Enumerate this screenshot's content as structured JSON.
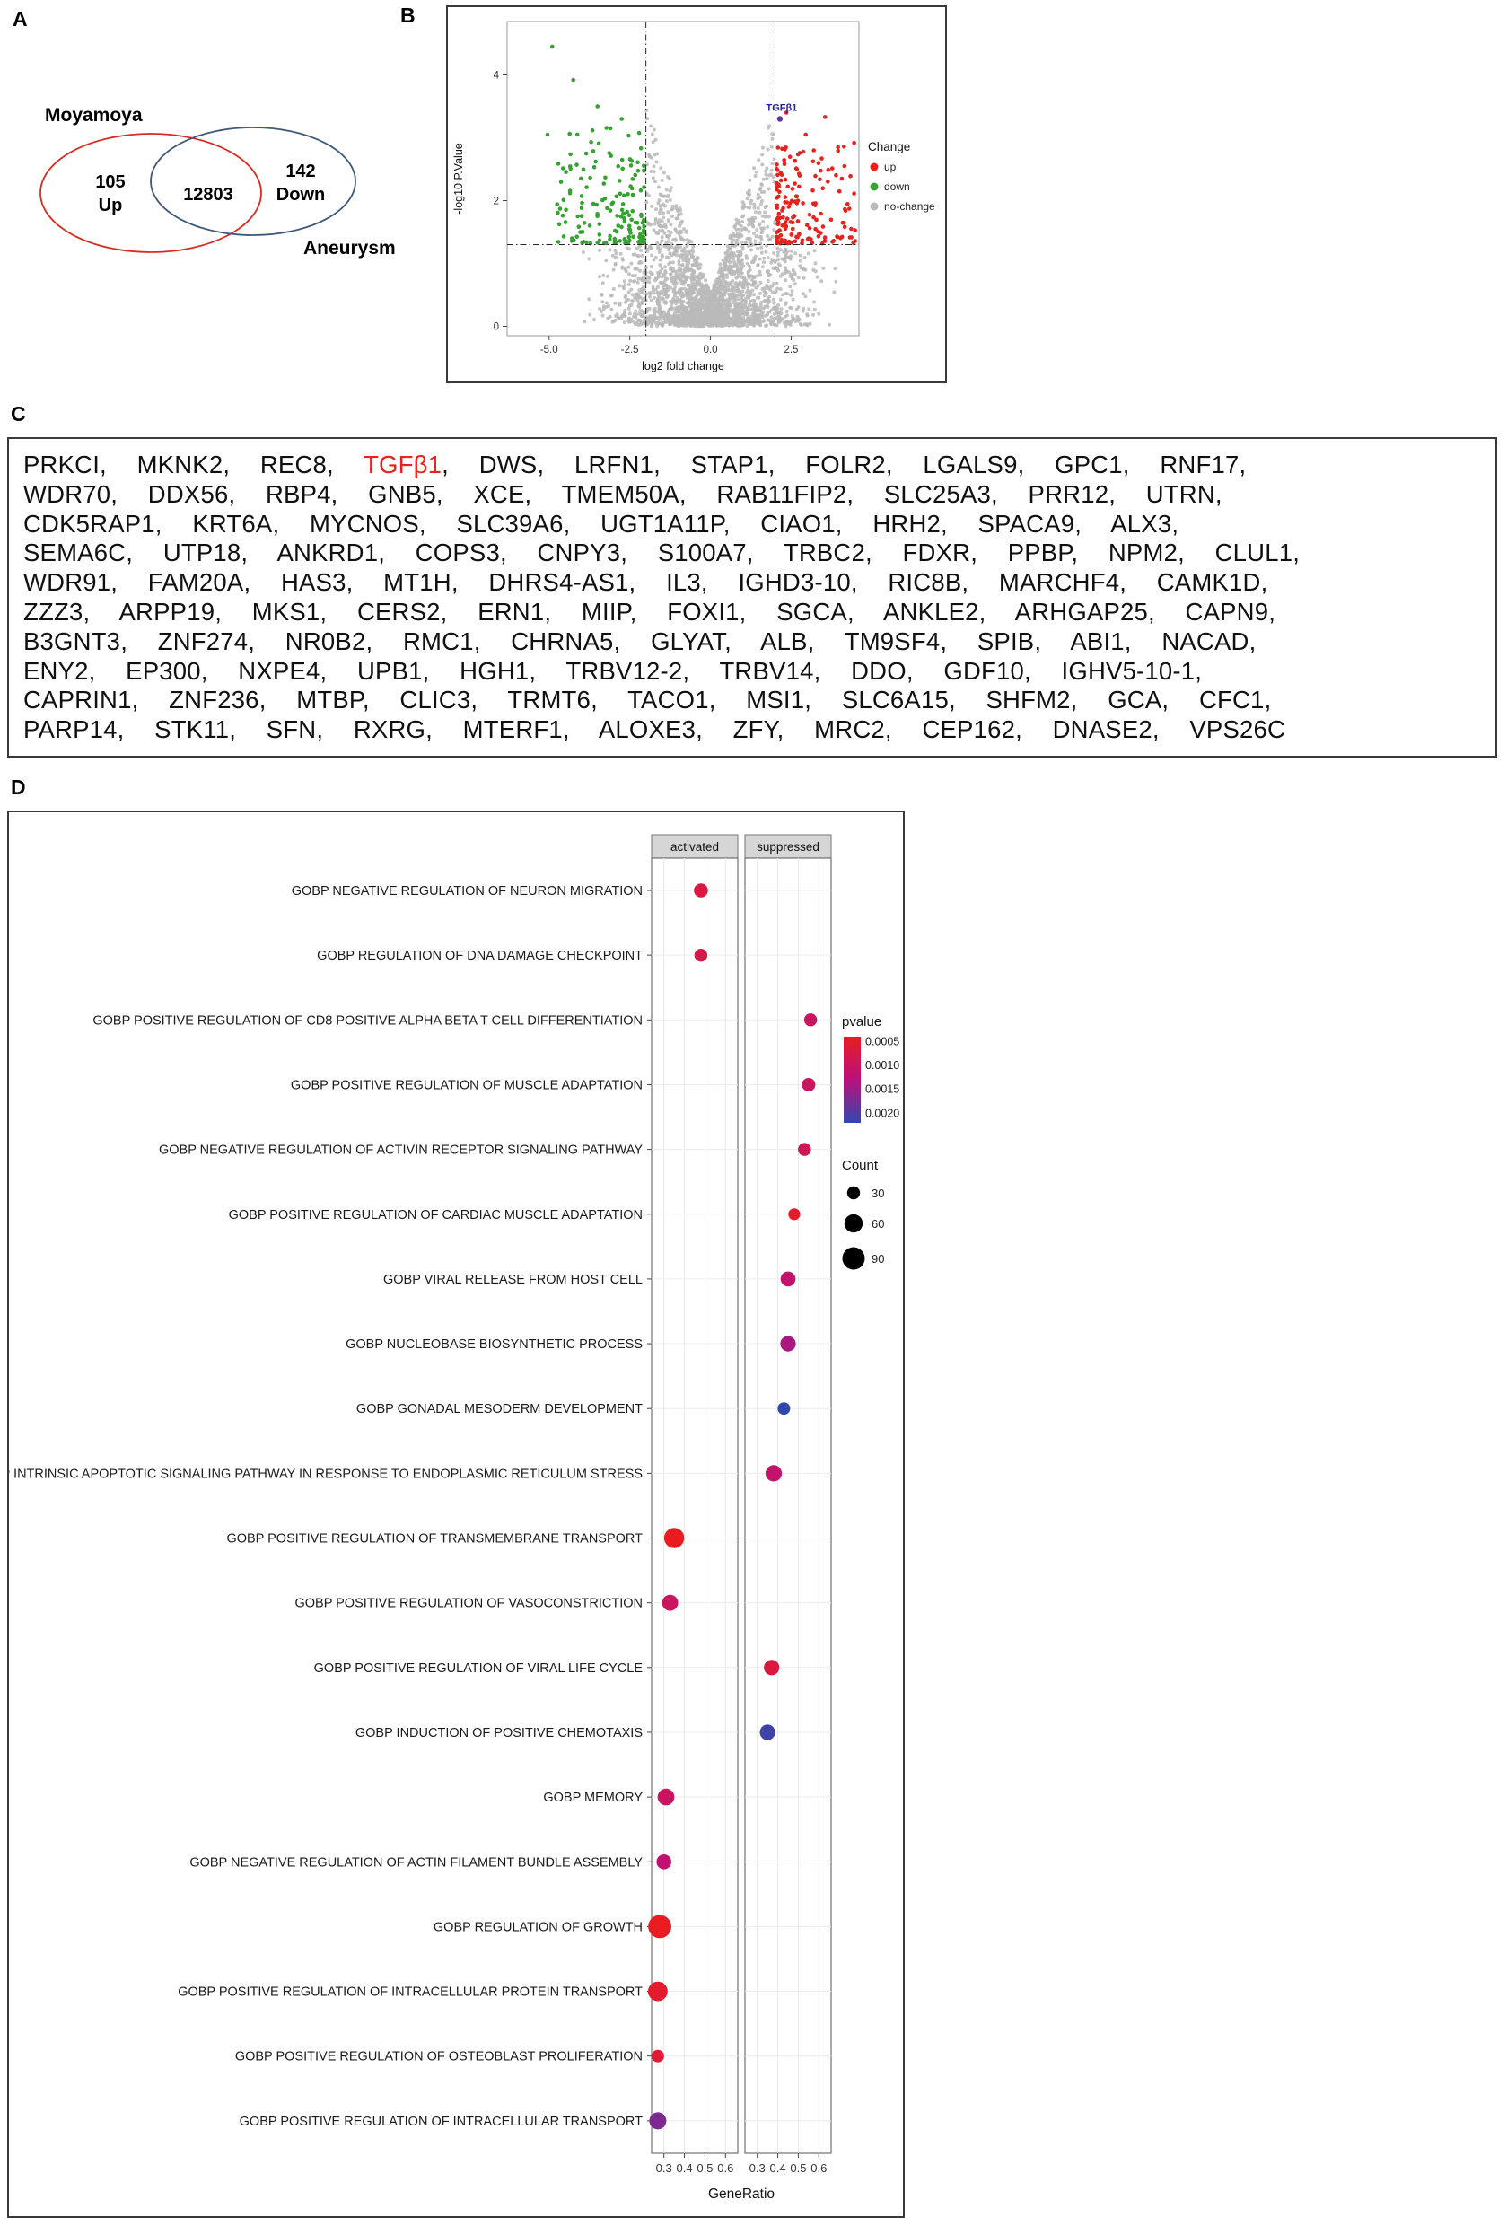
{
  "figure": {
    "panels": {
      "a": "A",
      "b": "B",
      "c": "C",
      "d": "D"
    }
  },
  "venn": {
    "left_title": "Moyamoya",
    "right_title": "Aneurysm",
    "left_value": "105",
    "left_sub": "Up",
    "intersection_value": "12803",
    "right_value": "142",
    "right_sub": "Down",
    "left_color": "#d92b21",
    "right_color": "#3f5a78"
  },
  "gene_list": {
    "highlight": "TGFβ1",
    "highlight_color": "#e8231d",
    "lines": [
      [
        "PRKCI",
        "MKNK2",
        "REC8",
        "TGFβ1",
        "DWS",
        "LRFN1",
        "STAP1",
        "FOLR2",
        "LGALS9",
        "GPC1",
        "RNF17"
      ],
      [
        "WDR70",
        "DDX56",
        "RBP4",
        "GNB5",
        "XCE",
        "TMEM50A",
        "RAB11FIP2",
        "SLC25A3",
        "PRR12",
        "UTRN"
      ],
      [
        "CDK5RAP1",
        "KRT6A",
        "MYCNOS",
        "SLC39A6",
        "UGT1A11P",
        "CIAO1",
        "HRH2",
        "SPACA9",
        "ALX3"
      ],
      [
        "SEMA6C",
        "UTP18",
        "ANKRD1",
        "COPS3",
        "CNPY3",
        "S100A7",
        "TRBC2",
        "FDXR",
        "PPBP",
        "NPM2",
        "CLUL1"
      ],
      [
        "WDR91",
        "FAM20A",
        "HAS3",
        "MT1H",
        "DHRS4-AS1",
        "IL3",
        "IGHD3-10",
        "RIC8B",
        "MARCHF4",
        "CAMK1D"
      ],
      [
        "ZZZ3",
        "ARPP19",
        "MKS1",
        "CERS2",
        "ERN1",
        "MIIP",
        "FOXI1",
        "SGCA",
        "ANKLE2",
        "ARHGAP25",
        "CAPN9"
      ],
      [
        "B3GNT3",
        "ZNF274",
        "NR0B2",
        "RMC1",
        "CHRNA5",
        "GLYAT",
        "ALB",
        "TM9SF4",
        "SPIB",
        "ABI1",
        "NACAD"
      ],
      [
        "ENY2",
        "EP300",
        "NXPE4",
        "UPB1",
        "HGH1",
        "TRBV12-2",
        "TRBV14",
        "DDO",
        "GDF10",
        "IGHV5-10-1"
      ],
      [
        "CAPRIN1",
        "ZNF236",
        "MTBP",
        "CLIC3",
        "TRMT6",
        "TACO1",
        "MSI1",
        "SLC6A15",
        "SHFM2",
        "GCA",
        "CFC1"
      ],
      [
        "PARP14",
        "STK11",
        "SFN",
        "RXRG",
        "MTERF1",
        "ALOXE3",
        "ZFY",
        "MRC2",
        "CEP162",
        "DNASE2",
        "VPS26C"
      ]
    ]
  },
  "chart_data": [
    {
      "id": "volcano",
      "type": "scatter",
      "xlabel": "log2 fold change",
      "ylabel": "-log10 P.Value",
      "xlim": [
        -6.3,
        4.6
      ],
      "ylim": [
        -0.15,
        4.85
      ],
      "x_ticks": [
        "-5.0",
        "-2.5",
        "0.0",
        "2.5"
      ],
      "x_tick_values": [
        -5.0,
        -2.5,
        0.0,
        2.5
      ],
      "y_ticks": [
        "0",
        "2",
        "4"
      ],
      "y_tick_values": [
        0,
        2,
        4
      ],
      "threshold_x": [
        -2,
        2
      ],
      "threshold_y": 1.3,
      "legend": {
        "title": "Change",
        "items": [
          {
            "label": "up",
            "color": "#e8231d"
          },
          {
            "label": "down",
            "color": "#35a330"
          },
          {
            "label": "no-change",
            "color": "#bababa"
          }
        ]
      },
      "annotated_point": {
        "label": "TGFβ1",
        "x": 2.15,
        "y": 3.3,
        "text_color": "#24248c",
        "point_color": "#5a3a96"
      },
      "generation": {
        "seed": 1337,
        "n_nochange": 2600,
        "n_down": 155,
        "n_up": 165
      },
      "down_outliers": [
        [
          -4.9,
          4.45
        ],
        [
          -4.25,
          3.92
        ],
        [
          -3.5,
          3.5
        ],
        [
          -2.75,
          3.3
        ],
        [
          -5.05,
          3.05
        ],
        [
          -3.1,
          3.15
        ]
      ],
      "up_outliers": [
        [
          4.45,
          2.92
        ],
        [
          3.55,
          3.33
        ],
        [
          2.95,
          3.05
        ],
        [
          4.15,
          2.55
        ],
        [
          2.35,
          3.4
        ],
        [
          3.2,
          2.8
        ]
      ]
    },
    {
      "id": "gsea_dotplot",
      "type": "dotplot",
      "facets": [
        "activated",
        "suppressed"
      ],
      "xlabel": "GeneRatio",
      "xlim": [
        0.24,
        0.66
      ],
      "x_ticks": [
        "0.3",
        "0.4",
        "0.5",
        "0.6"
      ],
      "x_tick_values": [
        0.3,
        0.4,
        0.5,
        0.6
      ],
      "color_legend": {
        "title": "pvalue",
        "domain": [
          0.0004,
          0.0022
        ],
        "ticks": [
          "0.0005",
          "0.0010",
          "0.0015",
          "0.0020"
        ],
        "tick_values": [
          0.0005,
          0.001,
          0.0015,
          0.002
        ]
      },
      "size_legend": {
        "title": "Count",
        "ticks": [
          30,
          60,
          90
        ]
      },
      "rows": [
        {
          "term": "GOBP NEGATIVE REGULATION OF NEURON MIGRATION",
          "facet": "activated",
          "gene_ratio": 0.48,
          "pvalue": 0.0007,
          "count": 35
        },
        {
          "term": "GOBP REGULATION OF DNA DAMAGE CHECKPOINT",
          "facet": "activated",
          "gene_ratio": 0.48,
          "pvalue": 0.0008,
          "count": 30
        },
        {
          "term": "GOBP POSITIVE REGULATION OF CD8 POSITIVE ALPHA BETA T CELL DIFFERENTIATION",
          "facet": "suppressed",
          "gene_ratio": 0.56,
          "pvalue": 0.001,
          "count": 30
        },
        {
          "term": "GOBP POSITIVE REGULATION OF MUSCLE ADAPTATION",
          "facet": "suppressed",
          "gene_ratio": 0.55,
          "pvalue": 0.001,
          "count": 32
        },
        {
          "term": "GOBP NEGATIVE REGULATION OF ACTIVIN RECEPTOR SIGNALING PATHWAY",
          "facet": "suppressed",
          "gene_ratio": 0.53,
          "pvalue": 0.0009,
          "count": 30
        },
        {
          "term": "GOBP POSITIVE REGULATION OF CARDIAC MUSCLE ADAPTATION",
          "facet": "suppressed",
          "gene_ratio": 0.48,
          "pvalue": 0.0005,
          "count": 25
        },
        {
          "term": "GOBP VIRAL RELEASE FROM HOST CELL",
          "facet": "suppressed",
          "gene_ratio": 0.45,
          "pvalue": 0.0011,
          "count": 40
        },
        {
          "term": "GOBP NUCLEOBASE BIOSYNTHETIC PROCESS",
          "facet": "suppressed",
          "gene_ratio": 0.45,
          "pvalue": 0.0014,
          "count": 42
        },
        {
          "term": "GOBP GONADAL MESODERM DEVELOPMENT",
          "facet": "suppressed",
          "gene_ratio": 0.43,
          "pvalue": 0.0022,
          "count": 28
        },
        {
          "term": "GOBP INTRINSIC APOPTOTIC SIGNALING PATHWAY IN RESPONSE TO ENDOPLASMIC RETICULUM STRESS",
          "facet": "suppressed",
          "gene_ratio": 0.38,
          "pvalue": 0.0011,
          "count": 48
        },
        {
          "term": "GOBP POSITIVE REGULATION OF TRANSMEMBRANE TRANSPORT",
          "facet": "activated",
          "gene_ratio": 0.35,
          "pvalue": 0.0004,
          "count": 72
        },
        {
          "term": "GOBP POSITIVE REGULATION OF VASOCONSTRICTION",
          "facet": "activated",
          "gene_ratio": 0.33,
          "pvalue": 0.001,
          "count": 45
        },
        {
          "term": "GOBP POSITIVE REGULATION OF VIRAL LIFE CYCLE",
          "facet": "suppressed",
          "gene_ratio": 0.37,
          "pvalue": 0.0007,
          "count": 42
        },
        {
          "term": "GOBP INDUCTION OF POSITIVE CHEMOTAXIS",
          "facet": "suppressed",
          "gene_ratio": 0.35,
          "pvalue": 0.0021,
          "count": 42
        },
        {
          "term": "GOBP MEMORY",
          "facet": "activated",
          "gene_ratio": 0.31,
          "pvalue": 0.001,
          "count": 50
        },
        {
          "term": "GOBP NEGATIVE REGULATION OF ACTIN FILAMENT BUNDLE ASSEMBLY",
          "facet": "activated",
          "gene_ratio": 0.3,
          "pvalue": 0.0012,
          "count": 40
        },
        {
          "term": "GOBP REGULATION OF GROWTH",
          "facet": "activated",
          "gene_ratio": 0.28,
          "pvalue": 0.0004,
          "count": 95
        },
        {
          "term": "GOBP POSITIVE REGULATION OF INTRACELLULAR PROTEIN TRANSPORT",
          "facet": "activated",
          "gene_ratio": 0.27,
          "pvalue": 0.0005,
          "count": 68
        },
        {
          "term": "GOBP POSITIVE REGULATION OF OSTEOBLAST PROLIFERATION",
          "facet": "activated",
          "gene_ratio": 0.27,
          "pvalue": 0.0006,
          "count": 28
        },
        {
          "term": "GOBP POSITIVE REGULATION OF INTRACELLULAR TRANSPORT",
          "facet": "activated",
          "gene_ratio": 0.27,
          "pvalue": 0.0017,
          "count": 52
        }
      ]
    }
  ]
}
